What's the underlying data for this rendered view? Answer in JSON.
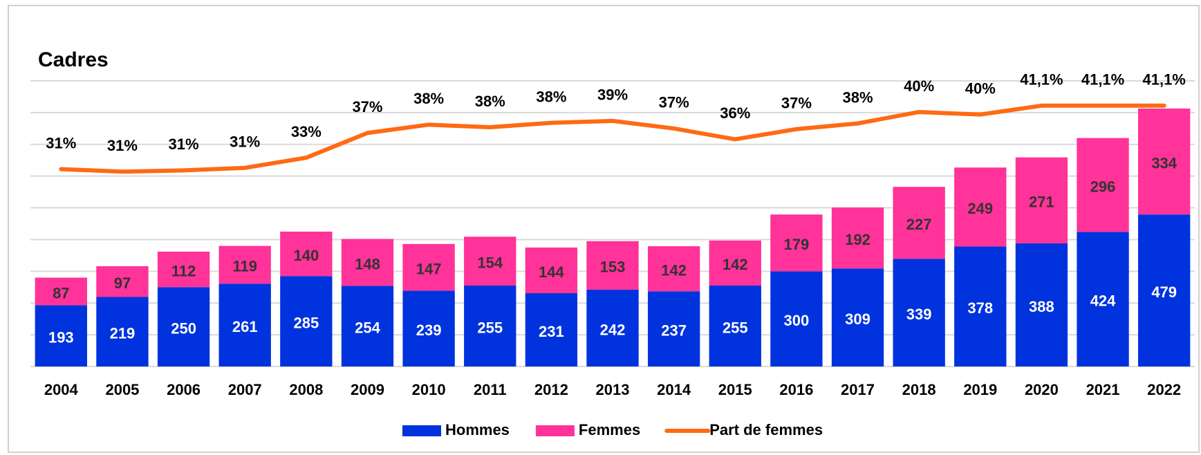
{
  "chart_data": {
    "type": "bar",
    "stacked": true,
    "title": "Cadres",
    "categories": [
      "2004",
      "2005",
      "2006",
      "2007",
      "2008",
      "2009",
      "2010",
      "2011",
      "2012",
      "2013",
      "2014",
      "2015",
      "2016",
      "2017",
      "2018",
      "2019",
      "2020",
      "2021",
      "2022"
    ],
    "series": [
      {
        "name": "Hommes",
        "color": "#0033dd",
        "values": [
          193,
          219,
          250,
          261,
          285,
          254,
          239,
          255,
          231,
          242,
          237,
          255,
          300,
          309,
          339,
          378,
          388,
          424,
          479
        ]
      },
      {
        "name": "Femmes",
        "color": "#ff3399",
        "values": [
          87,
          97,
          112,
          119,
          140,
          148,
          147,
          154,
          144,
          153,
          142,
          142,
          179,
          192,
          227,
          249,
          271,
          296,
          334
        ]
      },
      {
        "name": "Part de femmes",
        "type": "line",
        "axis": "y2",
        "color": "#ff6a13",
        "values": [
          31.1,
          30.7,
          30.9,
          31.3,
          32.9,
          36.8,
          38.1,
          37.7,
          38.4,
          38.7,
          37.5,
          35.8,
          37.4,
          38.3,
          40.1,
          39.7,
          41.1,
          41.1,
          41.1
        ],
        "value_labels": [
          "31%",
          "31%",
          "31%",
          "31%",
          "33%",
          "37%",
          "38%",
          "38%",
          "38%",
          "39%",
          "37%",
          "36%",
          "37%",
          "38%",
          "40%",
          "40%",
          "41,1%",
          "41,1%",
          "41,1%"
        ]
      }
    ],
    "ylim": [
      0,
      900
    ],
    "yticks": [
      0,
      100,
      200,
      300,
      400,
      500,
      600,
      700,
      800,
      900
    ],
    "y2lim": [
      0,
      45
    ],
    "grid": true,
    "legend": "bottom"
  }
}
